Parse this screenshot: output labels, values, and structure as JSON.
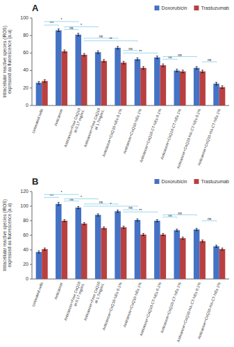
{
  "chart_data": [
    {
      "type": "bar",
      "title": "A",
      "y_label": "Intracellular reactive species (iROS)\nexpressed as fluorescence (a.u)",
      "categories": [
        "Untreated cells",
        "Anticancer",
        "Anticancer+Free CoQ10\nat 0.17 mg/mL",
        "Anticancer+Free CoQ10\nat 1.7mg/mL",
        "Anticancer+CoQ10-NEs 0.1%",
        "Anticancer+CoQ10-NEs 1%",
        "Anticancer+CoQ10-CT-NEs 0.1%",
        "Anticancer+CoQ10-CT-NEs 1%",
        "Anticancer+CoQ10-HA-CT-NEs 0.1%",
        "Anticancer+CoQ10-HA-CT-NEs 1%"
      ],
      "series": [
        {
          "name": "Doxorubicin",
          "color": "#4472C4",
          "values": [
            26,
            86,
            81,
            61,
            66,
            53,
            55,
            40,
            43,
            25
          ],
          "errors": [
            1.5,
            1.5,
            1.5,
            1.5,
            1.5,
            1.5,
            1.5,
            1.5,
            1.5,
            1.5
          ]
        },
        {
          "name": "Trastuzumab",
          "color": "#B94040",
          "values": [
            28,
            62,
            58,
            51,
            49,
            43,
            46,
            39,
            39,
            21
          ],
          "errors": [
            1.5,
            1.5,
            1.5,
            1.5,
            1.5,
            1.5,
            1.5,
            1.5,
            1.5,
            1.5
          ]
        }
      ],
      "ylim": [
        0,
        100
      ],
      "yticks": [
        0,
        20,
        40,
        60,
        80,
        100
      ],
      "legend": "top",
      "annotations": [
        {
          "label": "***",
          "x1": 0,
          "x2": 1,
          "y": 92,
          "color": "#87CEEB"
        },
        {
          "label": "*",
          "x1": 0,
          "x2": 2,
          "y": 96,
          "color": "#87CEEB"
        },
        {
          "label": "ns",
          "x1": 1,
          "x2": 2,
          "y": 87,
          "color": "#87CEEB"
        },
        {
          "label": "*",
          "x1": 1,
          "x2": 3,
          "y": 90,
          "color": "#87CEEB"
        },
        {
          "label": "ns",
          "x1": 2,
          "x2": 4,
          "y": 77,
          "color": "#87CEEB"
        },
        {
          "label": "**",
          "x1": 2,
          "x2": 5,
          "y": 74,
          "color": "#87CEEB"
        },
        {
          "label": "ns",
          "x1": 4,
          "x2": 5,
          "y": 63,
          "color": "#87CEEB"
        },
        {
          "label": "**",
          "x1": 4,
          "x2": 6,
          "y": 60,
          "color": "#87CEEB"
        },
        {
          "label": "ns",
          "x1": 6,
          "x2": 7,
          "y": 53,
          "color": "#87CEEB"
        },
        {
          "label": "ns",
          "x1": 6,
          "x2": 8,
          "y": 56,
          "color": "#87CEEB"
        },
        {
          "label": "ns",
          "x1": 8,
          "x2": 9,
          "y": 50,
          "color": "#87CEEB"
        }
      ]
    },
    {
      "type": "bar",
      "title": "B",
      "y_label": "Intracellular reactive species (iROS)\nexpressed as fluorescence (a.u)",
      "categories": [
        "Untreated cells",
        "Anticancer",
        "Anticancer+Free CoQ10\nat 0.17 mg/mL",
        "Anticancer+Free CoQ10\nat 1.7mg/mL",
        "Anticancer+CoQ10-NEs 0.1%",
        "Anticancer+CoQ10-NEs 1%",
        "Anticancer+CoQ10-CT-NEs 0.1%",
        "Anticancer+CoQ10-CT-NEs 1%",
        "Anticancer+CoQ10-HA-CT-NEs 0.1%",
        "Anticancer+CoQ10-HA-CT-NEs 1%"
      ],
      "series": [
        {
          "name": "Doxorubicin",
          "color": "#4472C4",
          "values": [
            37,
            103,
            98,
            88,
            93,
            81,
            80,
            67,
            68,
            45
          ],
          "errors": [
            1.5,
            2.0,
            1.5,
            1.5,
            1.5,
            1.5,
            1.5,
            1.5,
            1.5,
            1.5
          ]
        },
        {
          "name": "Trastuzumab",
          "color": "#B94040",
          "values": [
            41,
            80,
            76,
            70,
            71,
            61,
            61,
            56,
            52,
            41
          ],
          "errors": [
            1.5,
            1.5,
            1.5,
            1.5,
            1.5,
            1.5,
            1.5,
            1.5,
            1.5,
            1.5
          ]
        }
      ],
      "ylim": [
        0,
        120
      ],
      "yticks": [
        0,
        20,
        40,
        60,
        80,
        100,
        120
      ],
      "legend": "top",
      "annotations": [
        {
          "label": "***",
          "x1": 0,
          "x2": 1,
          "y": 112,
          "color": "#87CEEB"
        },
        {
          "label": "*",
          "x1": 0,
          "x2": 2,
          "y": 116,
          "color": "#87CEEB"
        },
        {
          "label": "ns",
          "x1": 1,
          "x2": 2,
          "y": 107,
          "color": "#87CEEB"
        },
        {
          "label": "*",
          "x1": 1,
          "x2": 3,
          "y": 110,
          "color": "#87CEEB"
        },
        {
          "label": "ns",
          "x1": 2,
          "x2": 4,
          "y": 103,
          "color": "#87CEEB"
        },
        {
          "label": "*",
          "x1": 2,
          "x2": 5,
          "y": 100,
          "color": "#87CEEB"
        },
        {
          "label": "ns",
          "x1": 4,
          "x2": 5,
          "y": 95,
          "color": "#87CEEB"
        },
        {
          "label": "**",
          "x1": 4,
          "x2": 6,
          "y": 92,
          "color": "#87CEEB"
        },
        {
          "label": "ns",
          "x1": 6,
          "x2": 7,
          "y": 85,
          "color": "#87CEEB"
        },
        {
          "label": "ns",
          "x1": 6,
          "x2": 8,
          "y": 88,
          "color": "#87CEEB"
        },
        {
          "label": "ns",
          "x1": 8,
          "x2": 9,
          "y": 80,
          "color": "#87CEEB"
        }
      ]
    }
  ]
}
